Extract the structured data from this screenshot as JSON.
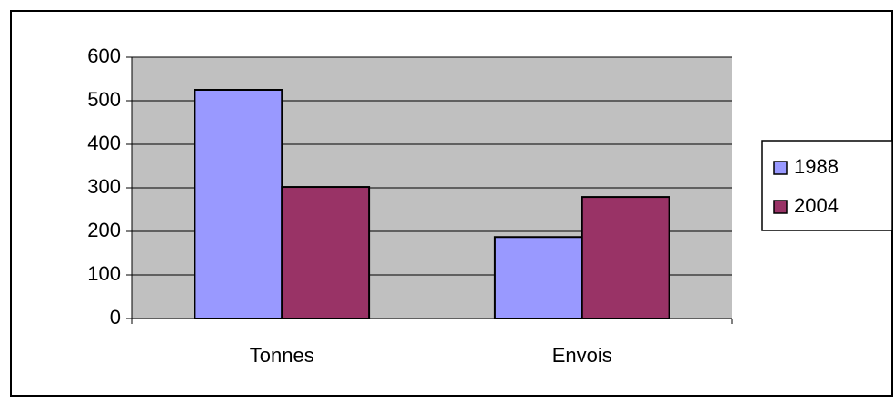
{
  "chart_data": {
    "type": "bar",
    "categories": [
      "Tonnes",
      "Envois"
    ],
    "series": [
      {
        "name": "1988",
        "color": "#9999ff",
        "values": [
          525,
          187
        ]
      },
      {
        "name": "2004",
        "color": "#993366",
        "values": [
          302,
          279
        ]
      }
    ],
    "ylim": [
      0,
      600
    ],
    "yticks": [
      0,
      100,
      200,
      300,
      400,
      500,
      600
    ],
    "grid": true,
    "legend": "right"
  }
}
